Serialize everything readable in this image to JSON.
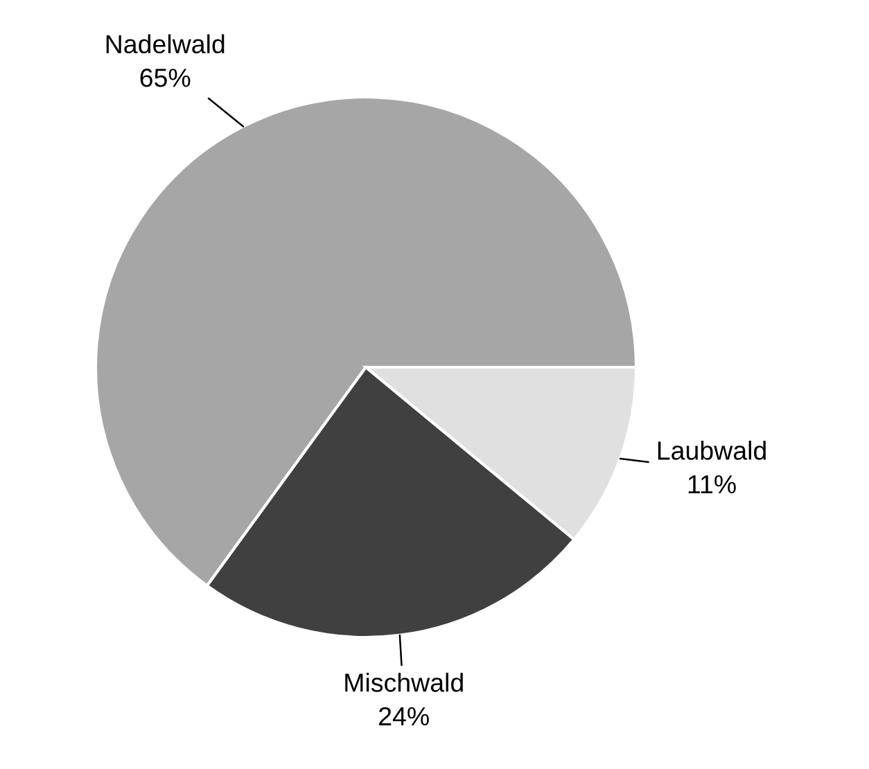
{
  "chart_data": {
    "type": "pie",
    "categories": [
      "Nadelwald",
      "Mischwald",
      "Laubwald"
    ],
    "values": [
      65,
      24,
      11
    ],
    "colors": [
      "#a6a6a6",
      "#404040",
      "#e0e0e0"
    ],
    "value_labels": [
      "65%",
      "24%",
      "11%"
    ]
  }
}
